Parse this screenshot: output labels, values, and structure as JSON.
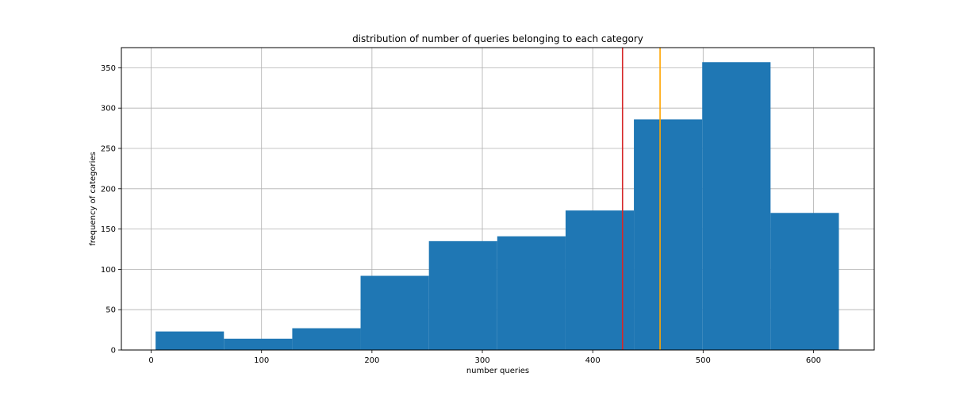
{
  "chart_data": {
    "type": "bar",
    "title": "distribution of number of queries belonging to each category",
    "xlabel": "number queries",
    "ylabel": "frequency of categories",
    "xlim": [
      -27,
      655
    ],
    "ylim": [
      0,
      375
    ],
    "xticks": [
      0,
      100,
      200,
      300,
      400,
      500,
      600
    ],
    "yticks": [
      0,
      50,
      100,
      150,
      200,
      250,
      300,
      350
    ],
    "grid": true,
    "bin_edges": [
      4,
      65.9,
      127.8,
      189.7,
      251.6,
      313.5,
      375.4,
      437.3,
      499.2,
      561.1,
      623
    ],
    "values": [
      23,
      14,
      27,
      92,
      135,
      141,
      173,
      286,
      357,
      170
    ],
    "bar_color": "#1f77b4",
    "vlines": [
      {
        "x": 427,
        "color": "#d62728"
      },
      {
        "x": 461,
        "color": "#ffa500"
      }
    ]
  }
}
